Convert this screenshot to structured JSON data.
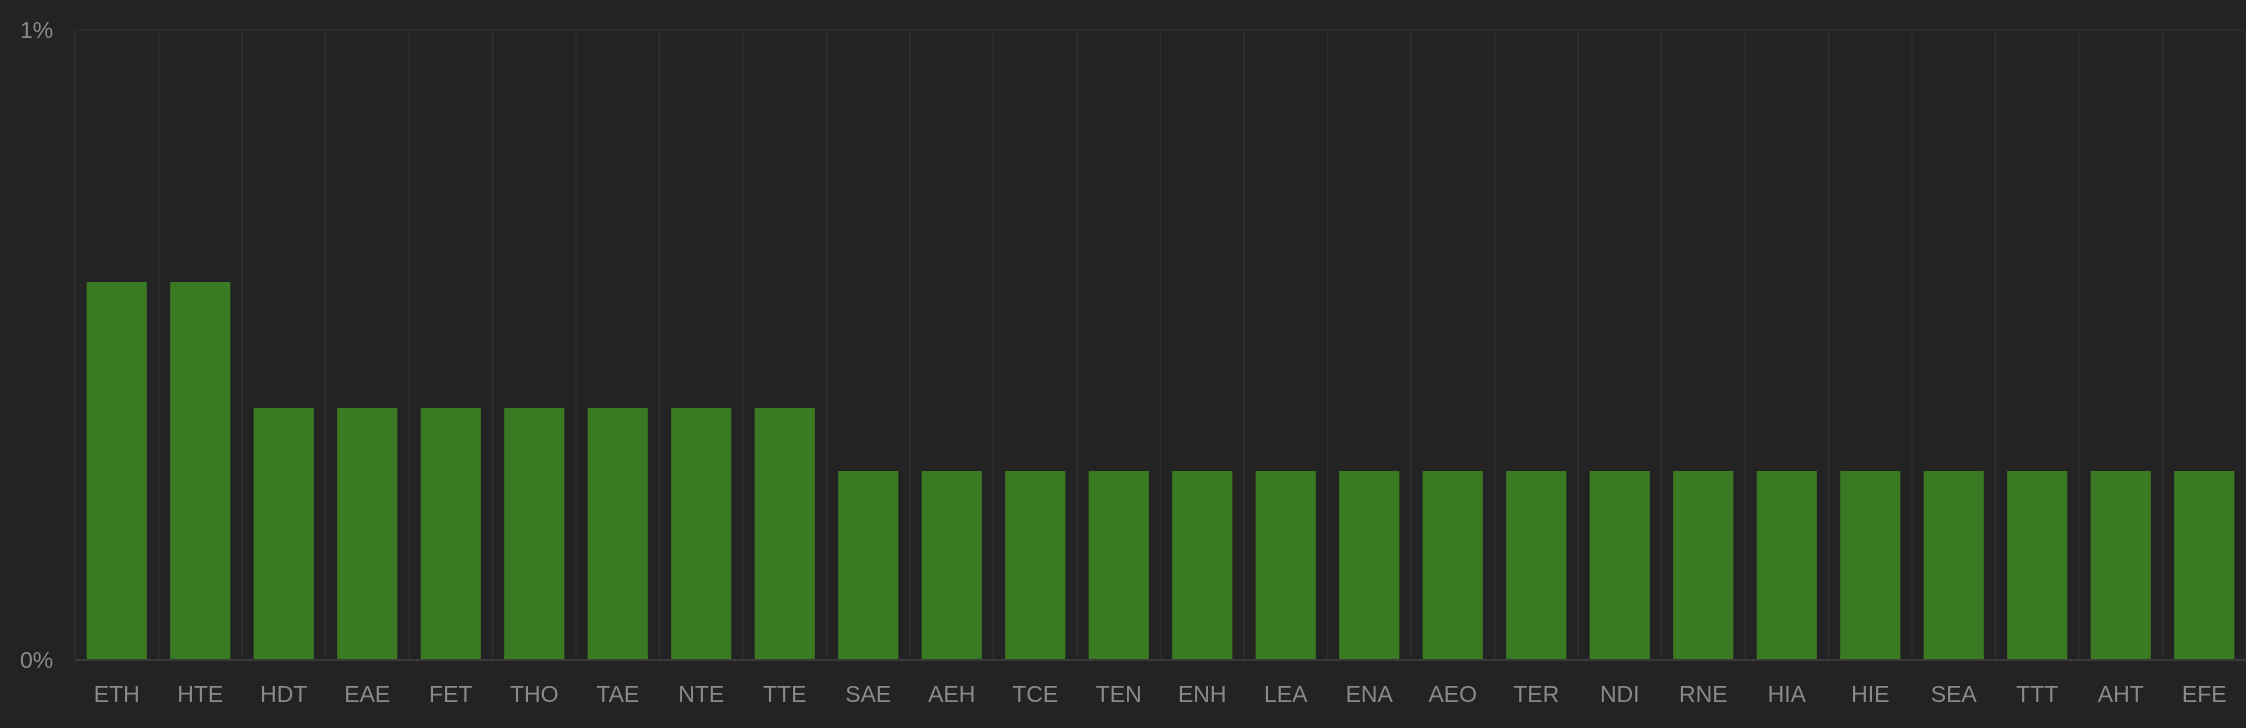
{
  "chart_data": {
    "type": "bar",
    "categories": [
      "ETH",
      "HTE",
      "HDT",
      "EAE",
      "FET",
      "THO",
      "TAE",
      "NTE",
      "TTE",
      "SAE",
      "AEH",
      "TCE",
      "TEN",
      "ENH",
      "LEA",
      "ENA",
      "AEO",
      "TER",
      "NDI",
      "RNE",
      "HIA",
      "HIE",
      "SEA",
      "TTT",
      "AHT",
      "EFE"
    ],
    "values": [
      0.6,
      0.6,
      0.4,
      0.4,
      0.4,
      0.4,
      0.4,
      0.4,
      0.4,
      0.3,
      0.3,
      0.3,
      0.3,
      0.3,
      0.3,
      0.3,
      0.3,
      0.3,
      0.3,
      0.3,
      0.3,
      0.3,
      0.3,
      0.3,
      0.3,
      0.3
    ],
    "ylim": [
      0,
      1
    ],
    "ytick_labels": [
      "0%",
      "1%"
    ],
    "grid": true,
    "colors": {
      "bar": "#3a7a22",
      "background": "#232323",
      "grid": "#2e2e2e",
      "text": "#8a8a8a"
    }
  }
}
